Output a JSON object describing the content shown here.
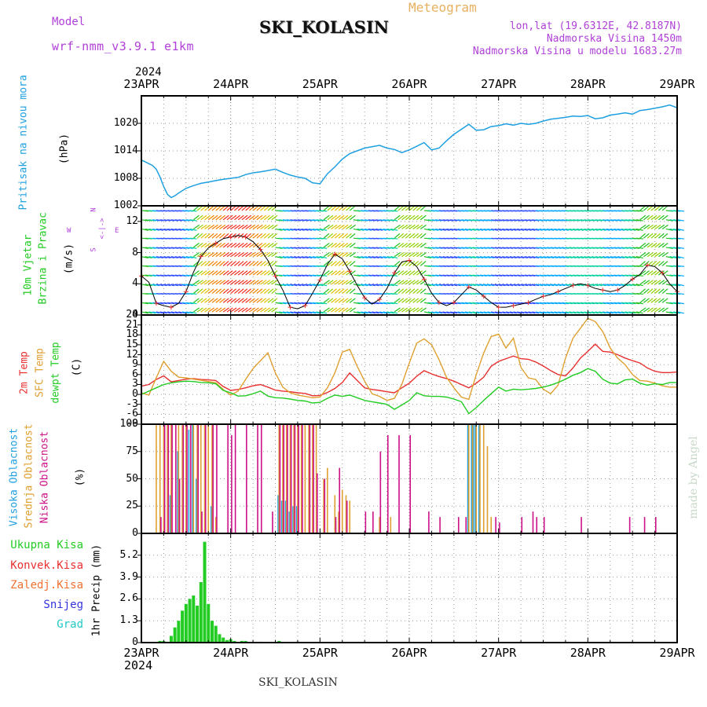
{
  "header": {
    "model_label": "Model",
    "model_name": "wrf-nmm_v3.9.1 e1km",
    "station": "SKI_KOLASIN",
    "product": "Meteogram",
    "coords": "lon,lat (19.6312E, 42.8187N)",
    "elevation": "Nadmorska Visina 1450m",
    "model_elevation": "Nadmorska Visina u modelu 1683.27m",
    "footer_station": "SKI_KOLASIN",
    "credit": "made by Angel"
  },
  "time_axis": {
    "year": "2024",
    "labels": [
      "23APR",
      "24APR",
      "25APR",
      "26APR",
      "27APR",
      "28APR",
      "29APR"
    ]
  },
  "colors": {
    "pressure": "#1ea0e0",
    "wind_label": "#22cc22",
    "t2m": "#e83030",
    "sfc": "#e0a030",
    "dew": "#22cc22",
    "cloud_high": "#1ea0e0",
    "cloud_mid": "#e0a030",
    "cloud_low": "#cc1188",
    "precip_total": "#22cc22",
    "precip_conv": "#e83030",
    "precip_frz": "#f07030",
    "precip_snow": "#3333dd",
    "precip_grad": "#22c8c8",
    "wind_legend": "#b040d8",
    "header_purple": "#b040d8",
    "header_gold": "#e8b060"
  },
  "chart_data": [
    {
      "type": "line",
      "panel": "pressure",
      "series_name": "Pritisak na nivou mora",
      "ylabel": "(hPa)",
      "ylim": [
        1002,
        1026
      ],
      "yticks": [
        1002,
        1008,
        1014,
        1020
      ],
      "x": [
        0,
        2,
        3,
        4,
        5,
        6,
        7,
        8,
        9,
        10,
        12,
        14,
        16,
        18,
        20,
        22,
        24,
        26,
        28,
        30,
        32,
        34,
        36,
        38,
        40,
        42,
        44,
        46,
        48,
        50,
        52,
        54,
        56,
        58,
        60,
        62,
        64,
        66,
        68,
        70,
        72,
        74,
        76,
        78,
        80,
        82,
        84,
        86,
        88,
        90,
        92,
        94,
        96,
        98,
        100,
        102,
        104,
        106,
        108,
        110,
        112,
        114,
        116,
        118,
        120,
        122,
        124,
        126,
        128,
        130,
        132,
        134,
        136,
        138,
        140,
        142,
        144
      ],
      "values": [
        1012.0,
        1011.2,
        1010.8,
        1010.0,
        1008.3,
        1006.2,
        1004.5,
        1003.8,
        1004.2,
        1004.8,
        1005.8,
        1006.4,
        1006.9,
        1007.2,
        1007.5,
        1007.8,
        1008.0,
        1008.2,
        1008.8,
        1009.2,
        1009.4,
        1009.7,
        1010.0,
        1009.3,
        1008.7,
        1008.3,
        1008.0,
        1007.0,
        1006.8,
        1009.0,
        1010.5,
        1012.2,
        1013.4,
        1014.0,
        1014.6,
        1014.9,
        1015.2,
        1014.6,
        1014.3,
        1013.6,
        1014.2,
        1015.0,
        1015.8,
        1014.2,
        1014.6,
        1016.2,
        1017.6,
        1018.7,
        1019.8,
        1018.5,
        1018.6,
        1019.3,
        1019.5,
        1019.9,
        1019.6,
        1020.0,
        1019.8,
        1020.0,
        1020.5,
        1020.9,
        1021.1,
        1021.3,
        1021.6,
        1021.5,
        1021.7,
        1021.0,
        1021.2,
        1021.8,
        1022.0,
        1022.3,
        1022.0,
        1022.8,
        1023.0,
        1023.3,
        1023.6,
        1024.0,
        1023.4
      ]
    },
    {
      "type": "line",
      "panel": "wind",
      "series_name": "10m Vjetar Brzina i Pravac",
      "ylabel": "(m/s)",
      "ylim": [
        0,
        14
      ],
      "yticks": [
        0,
        4,
        8,
        12
      ],
      "direction_legend": "N, E, S, W",
      "x": [
        0,
        2,
        4,
        6,
        8,
        10,
        12,
        14,
        16,
        18,
        20,
        22,
        24,
        26,
        28,
        30,
        32,
        34,
        36,
        38,
        40,
        42,
        44,
        46,
        48,
        50,
        52,
        54,
        56,
        58,
        60,
        62,
        64,
        66,
        68,
        70,
        72,
        74,
        76,
        78,
        80,
        82,
        84,
        86,
        88,
        90,
        92,
        94,
        96,
        98,
        100,
        102,
        104,
        106,
        108,
        110,
        112,
        114,
        116,
        118,
        120,
        122,
        124,
        126,
        128,
        130,
        132,
        134,
        136,
        138,
        140,
        142,
        144
      ],
      "values": [
        5.0,
        4.2,
        1.5,
        1.2,
        1.0,
        1.5,
        3.0,
        5.5,
        7.5,
        8.6,
        9.2,
        9.8,
        10.0,
        10.2,
        10.0,
        9.4,
        8.4,
        7.0,
        5.0,
        3.2,
        1.0,
        0.8,
        1.2,
        2.8,
        4.5,
        6.5,
        7.8,
        7.2,
        5.6,
        3.8,
        2.2,
        1.4,
        2.0,
        3.4,
        5.4,
        6.8,
        7.0,
        6.2,
        4.6,
        2.8,
        1.6,
        1.2,
        1.6,
        2.6,
        3.6,
        3.2,
        2.4,
        1.6,
        1.0,
        1.0,
        1.2,
        1.4,
        1.6,
        2.0,
        2.4,
        2.6,
        3.0,
        3.4,
        3.8,
        4.0,
        3.8,
        3.4,
        3.2,
        3.0,
        3.2,
        3.8,
        4.6,
        5.2,
        6.4,
        6.2,
        5.4,
        4.0,
        3.0
      ]
    },
    {
      "type": "line",
      "panel": "temperature",
      "ylabel": "(C)",
      "ylim": [
        -9,
        24
      ],
      "yticks": [
        -9,
        -6,
        -3,
        0,
        3,
        6,
        9,
        12,
        15,
        18,
        21,
        24
      ],
      "x": [
        0,
        2,
        4,
        6,
        8,
        10,
        12,
        14,
        16,
        18,
        20,
        22,
        24,
        26,
        28,
        30,
        32,
        34,
        36,
        38,
        40,
        42,
        44,
        46,
        48,
        50,
        52,
        54,
        56,
        58,
        60,
        62,
        64,
        66,
        68,
        70,
        72,
        74,
        76,
        78,
        80,
        82,
        84,
        86,
        88,
        90,
        92,
        94,
        96,
        98,
        100,
        102,
        104,
        106,
        108,
        110,
        112,
        114,
        116,
        118,
        120,
        122,
        124,
        126,
        128,
        130,
        132,
        134,
        136,
        138,
        140,
        142,
        144
      ],
      "series": [
        {
          "name": "2m Temp",
          "color": "#e83030",
          "values": [
            2.5,
            3.0,
            4.5,
            5.6,
            3.8,
            4.2,
            4.6,
            4.8,
            4.5,
            4.4,
            4.2,
            2.4,
            1.2,
            1.5,
            2.0,
            2.6,
            3.0,
            2.2,
            1.3,
            1.0,
            0.8,
            0.5,
            0.3,
            -0.4,
            -0.3,
            0.6,
            1.8,
            3.6,
            6.5,
            4.2,
            2.0,
            1.5,
            1.2,
            0.8,
            0.5,
            2.0,
            3.4,
            5.5,
            7.2,
            6.2,
            5.4,
            4.8,
            4.0,
            3.0,
            2.0,
            3.4,
            5.2,
            8.5,
            10.0,
            10.8,
            11.6,
            10.8,
            10.6,
            9.8,
            8.6,
            7.2,
            6.0,
            5.6,
            8.0,
            11.0,
            13.0,
            15.2,
            13.0,
            12.8,
            12.0,
            11.0,
            10.2,
            9.5,
            8.0,
            7.0,
            6.6,
            6.6,
            6.8
          ]
        },
        {
          "name": "SFC Temp",
          "color": "#e0a030",
          "values": [
            0.5,
            -0.2,
            5.0,
            10.0,
            7.0,
            5.2,
            5.0,
            4.6,
            4.3,
            3.9,
            3.5,
            1.5,
            -0.2,
            1.0,
            4.5,
            7.8,
            10.2,
            12.6,
            6.5,
            2.2,
            0.5,
            -0.2,
            -0.6,
            -1.0,
            -0.8,
            2.0,
            6.5,
            12.8,
            13.6,
            8.5,
            4.0,
            0.2,
            -0.6,
            -1.8,
            -1.2,
            3.0,
            9.5,
            15.5,
            16.8,
            15.0,
            10.5,
            5.2,
            2.0,
            -0.8,
            -1.5,
            6.0,
            12.5,
            17.5,
            18.2,
            14.0,
            17.0,
            8.2,
            5.0,
            4.5,
            1.6,
            0.2,
            2.8,
            11.0,
            17.0,
            20.0,
            23.0,
            22.0,
            19.0,
            14.0,
            11.0,
            9.0,
            6.0,
            4.2,
            4.0,
            3.4,
            2.6,
            2.2,
            2.2
          ]
        },
        {
          "name": "dewpt Temp",
          "color": "#22cc22",
          "values": [
            0.0,
            1.0,
            2.0,
            3.0,
            3.5,
            3.8,
            4.0,
            3.9,
            3.6,
            3.5,
            3.2,
            1.2,
            0.5,
            -0.5,
            -0.4,
            0.2,
            1.0,
            -0.5,
            -1.0,
            -1.1,
            -1.4,
            -1.8,
            -2.0,
            -2.6,
            -2.4,
            -1.2,
            -0.2,
            -0.6,
            -0.2,
            -1.0,
            -1.8,
            -2.2,
            -2.6,
            -3.0,
            -4.5,
            -3.2,
            -1.8,
            0.5,
            -0.4,
            -0.6,
            -0.6,
            -0.8,
            -1.4,
            -2.2,
            -5.8,
            -4.0,
            -1.8,
            0.2,
            2.2,
            1.0,
            1.6,
            1.4,
            1.6,
            1.8,
            2.2,
            2.8,
            3.6,
            4.6,
            5.8,
            6.6,
            7.8,
            7.0,
            4.6,
            3.4,
            3.2,
            4.4,
            4.6,
            3.4,
            2.8,
            3.2,
            3.0,
            3.6,
            3.6
          ]
        }
      ]
    },
    {
      "type": "bar",
      "panel": "cloud",
      "ylabel": "(%)",
      "ylim": [
        0,
        100
      ],
      "yticks": [
        0,
        25,
        50,
        75,
        100
      ],
      "series": [
        {
          "name": "Visoka Oblacnost",
          "color": "#1ea0e0",
          "x": [
            8,
            10,
            13,
            14,
            15,
            19,
            37,
            38,
            39,
            40,
            41,
            42,
            88,
            89,
            89.5,
            90,
            91
          ],
          "values": [
            35,
            75,
            95,
            100,
            50,
            25,
            35,
            30,
            30,
            20,
            25,
            25,
            100,
            100,
            100,
            100,
            100
          ]
        },
        {
          "name": "Srednja Oblacnost",
          "color": "#e0a030",
          "x": [
            4,
            5,
            6,
            7,
            8,
            10,
            11,
            12,
            14,
            15,
            16,
            17,
            18,
            19,
            20,
            37,
            38,
            39,
            40,
            41,
            42,
            43,
            44,
            45,
            46,
            47,
            49,
            50,
            52,
            53,
            54,
            55,
            56,
            64,
            67,
            88,
            89,
            90,
            91,
            92,
            93,
            94
          ],
          "values": [
            100,
            100,
            100,
            100,
            100,
            100,
            100,
            100,
            100,
            100,
            100,
            100,
            100,
            100,
            15,
            100,
            100,
            100,
            100,
            100,
            100,
            100,
            100,
            100,
            100,
            100,
            50,
            60,
            35,
            20,
            40,
            35,
            30,
            15,
            15,
            100,
            100,
            100,
            100,
            100,
            80,
            15
          ]
        },
        {
          "name": "Niska Oblacnost",
          "color": "#cc1188",
          "x": [
            5,
            6,
            7,
            8,
            9,
            10,
            11,
            12,
            13,
            15,
            16,
            17,
            19,
            20,
            23,
            24,
            25,
            28,
            31,
            32,
            35,
            37,
            38,
            39,
            40,
            41,
            42,
            43,
            45,
            46,
            47,
            49,
            52,
            53,
            55,
            60,
            62,
            64,
            66,
            69,
            72,
            77,
            80,
            85,
            87,
            95,
            96,
            102,
            105,
            106,
            108,
            118,
            131,
            135,
            138
          ],
          "values": [
            15,
            100,
            100,
            100,
            100,
            50,
            100,
            100,
            100,
            100,
            20,
            100,
            100,
            100,
            100,
            90,
            100,
            100,
            100,
            100,
            20,
            100,
            100,
            100,
            100,
            100,
            100,
            100,
            100,
            100,
            55,
            50,
            15,
            60,
            30,
            20,
            20,
            75,
            90,
            90,
            90,
            20,
            15,
            15,
            15,
            15,
            10,
            15,
            20,
            15,
            15,
            15,
            15,
            15,
            15
          ]
        }
      ]
    },
    {
      "type": "bar",
      "panel": "precipitation",
      "ylabel": "1hr Precip (mm)",
      "ylim": [
        0,
        6.5
      ],
      "yticks": [
        0,
        1.3,
        2.6,
        3.9,
        5.2
      ],
      "series": [
        {
          "name": "Ukupna Kisa",
          "color": "#22cc22",
          "x": [
            5,
            6,
            7,
            8,
            9,
            10,
            11,
            12,
            13,
            14,
            15,
            16,
            17,
            18,
            19,
            20,
            21,
            22,
            23,
            24,
            25,
            27,
            28,
            32,
            37,
            42
          ],
          "values": [
            0.1,
            0.1,
            0.05,
            0.4,
            0.9,
            1.3,
            1.9,
            2.3,
            2.6,
            2.8,
            2.2,
            3.6,
            6.0,
            2.3,
            1.3,
            1.0,
            0.5,
            0.3,
            0.15,
            0.2,
            0.1,
            0.1,
            0.1,
            0.05,
            0.1,
            0.05
          ]
        },
        {
          "name": "Konvek.Kisa",
          "color": "#e83030",
          "x": [
            37,
            42
          ],
          "values": [
            0.05,
            0.05
          ]
        },
        {
          "name": "Zaledj.Kisa",
          "color": "#f07030",
          "x": [],
          "values": []
        },
        {
          "name": "Snijeg",
          "color": "#3333dd",
          "x": [],
          "values": []
        },
        {
          "name": "Grad",
          "color": "#22c8c8",
          "x": [],
          "values": []
        }
      ]
    }
  ],
  "panel_labels": {
    "pressure": [
      "Pritisak na nivou mora"
    ],
    "wind": [
      "10m Vjetar",
      "Brzina i Pravac"
    ],
    "temp": [
      "2m Temp",
      "SFC Temp",
      "dewpt Temp"
    ],
    "cloud": [
      "Visoka Oblacnost",
      "Srednja Oblacnost",
      "Niska Oblacnost"
    ],
    "precip": [
      "Ukupna Kisa",
      "Konvek.Kisa",
      "Zaledj.Kisa",
      "Snijeg",
      "Grad"
    ]
  }
}
